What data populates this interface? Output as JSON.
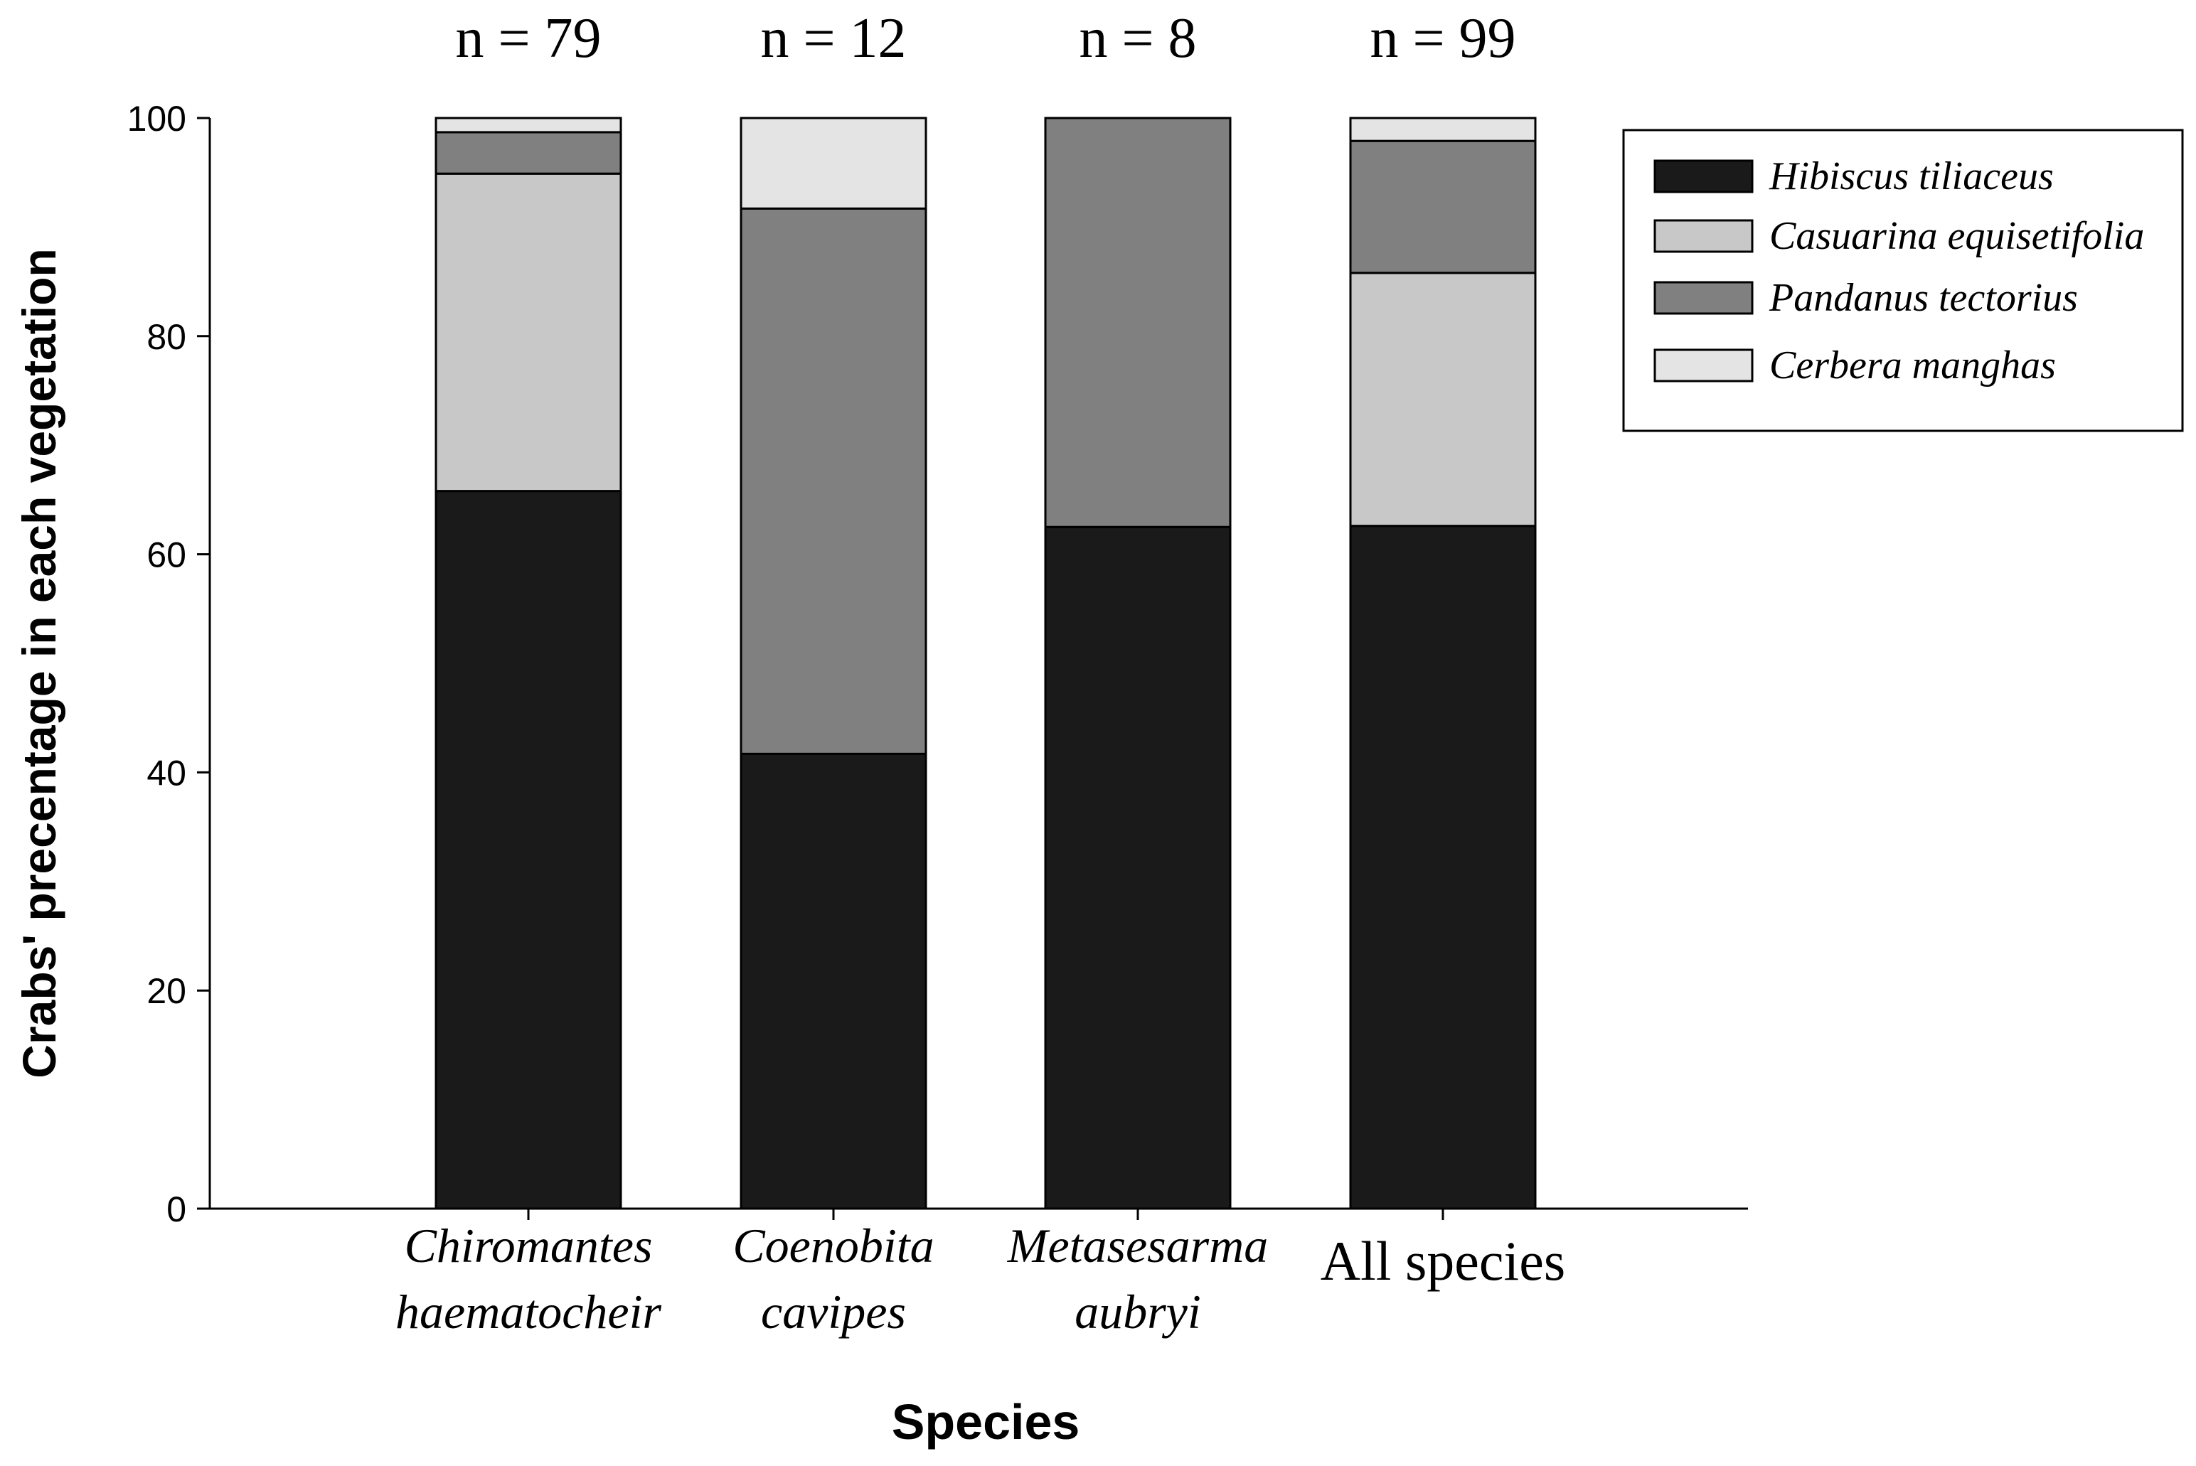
{
  "chart_data": {
    "type": "bar",
    "stacked": true,
    "title": "",
    "xlabel": "Species",
    "ylabel": "Crabs' precentage in each vegetation",
    "ylim": [
      0,
      100
    ],
    "yticks": [
      "0",
      "20",
      "40",
      "60",
      "80",
      "100"
    ],
    "categories": [
      {
        "line1": "Chiromantes",
        "line2": "haematocheir",
        "italic": true
      },
      {
        "line1": "Coenobita",
        "line2": "cavipes",
        "italic": true
      },
      {
        "line1": "Metasesarma",
        "line2": "aubryi",
        "italic": true
      },
      {
        "line1": "All species",
        "line2": "",
        "italic": false
      }
    ],
    "sample_sizes": [
      "n = 79",
      "n = 12",
      "n = 8",
      "n = 99"
    ],
    "series": [
      {
        "name": "Hibiscus tiliaceus",
        "color": "#1a1a1a",
        "values": [
          65.8,
          41.7,
          62.5,
          62.6
        ]
      },
      {
        "name": "Casuarina equisetifolia",
        "color": "#c8c8c8",
        "values": [
          29.1,
          0,
          0,
          23.2
        ]
      },
      {
        "name": "Pandanus tectorius",
        "color": "#808080",
        "values": [
          3.8,
          50.0,
          37.5,
          12.1
        ]
      },
      {
        "name": "Cerbera manghas",
        "color": "#e4e4e4",
        "values": [
          1.3,
          8.3,
          0,
          2.1
        ]
      }
    ],
    "legend_position": "top-right"
  }
}
